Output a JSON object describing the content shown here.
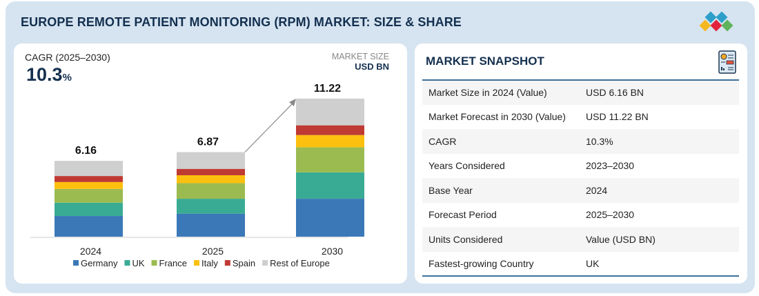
{
  "title": "EUROPE REMOTE PATIENT MONITORING (RPM) MARKET: SIZE & SHARE",
  "cagr": {
    "label": "CAGR (2025–2030)",
    "value": "10.3",
    "unit": "%"
  },
  "market_size": {
    "label": "MARKET SIZE",
    "unit": "USD BN"
  },
  "snapshot": {
    "title": "MARKET SNAPSHOT",
    "rows": [
      {
        "label": "Market Size in 2024 (Value)",
        "value": "USD 6.16 BN"
      },
      {
        "label": "Market Forecast in 2030 (Value)",
        "value": "USD 11.22 BN"
      },
      {
        "label": "CAGR",
        "value": "10.3%"
      },
      {
        "label": "Years Considered",
        "value": "2023–2030"
      },
      {
        "label": "Base Year",
        "value": "2024"
      },
      {
        "label": "Forecast Period",
        "value": "2025–2030"
      },
      {
        "label": "Units Considered",
        "value": "Value (USD BN)"
      },
      {
        "label": "Fastest-growing Country",
        "value": "UK"
      }
    ]
  },
  "chart_data": {
    "type": "bar",
    "stacked": true,
    "categories": [
      "2024",
      "2025",
      "2030"
    ],
    "totals": [
      "6.16",
      "6.87",
      "11.22"
    ],
    "series": [
      {
        "name": "Germany",
        "color": "#3a78b8",
        "values": [
          1.68,
          1.87,
          3.08
        ]
      },
      {
        "name": "UK",
        "color": "#39ab94",
        "values": [
          1.08,
          1.21,
          2.15
        ]
      },
      {
        "name": "France",
        "color": "#9bbb50",
        "values": [
          1.12,
          1.27,
          2.04
        ]
      },
      {
        "name": "Italy",
        "color": "#fdc00f",
        "values": [
          0.56,
          0.64,
          0.99
        ]
      },
      {
        "name": "Spain",
        "color": "#bf3a33",
        "values": [
          0.49,
          0.52,
          0.79
        ]
      },
      {
        "name": "Rest of Europe",
        "color": "#cfcfcf",
        "values": [
          1.23,
          1.36,
          2.17
        ]
      }
    ],
    "legend": "bottom",
    "grid": false,
    "growth_arrow": [
      "2025",
      "2030"
    ]
  }
}
